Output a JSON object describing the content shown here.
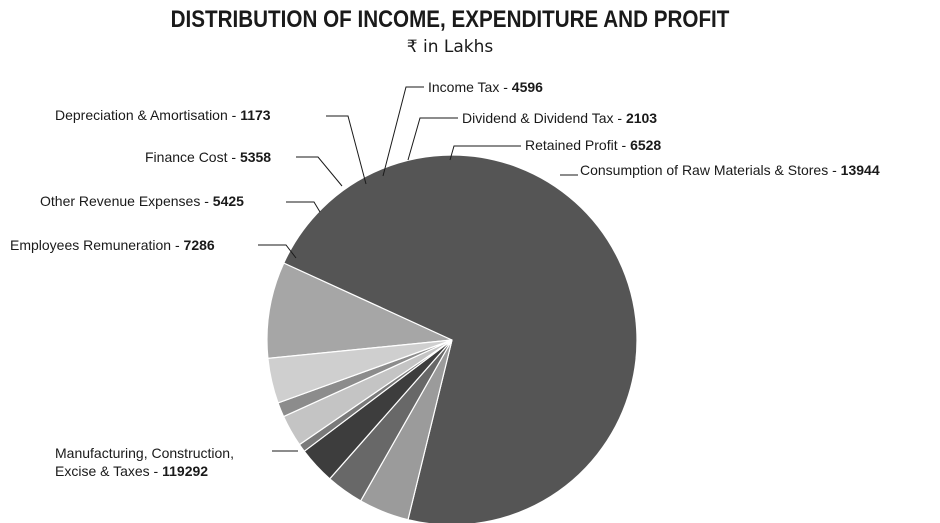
{
  "chart_data": {
    "type": "pie",
    "title": "DISTRIBUTION OF INCOME, EXPENDITURE AND PROFIT",
    "subtitle": "₹ in Lakhs",
    "slices": [
      {
        "label": "Consumption of Raw Materials & Stores",
        "value": 13944,
        "display": "13944",
        "color": "#a6a6a6"
      },
      {
        "label": "Manufacturing, Construction, Excise & Taxes",
        "value": 119292,
        "display": "119292",
        "color": "#555555",
        "lines": [
          "Manufacturing, Construction,",
          "Excise & Taxes"
        ]
      },
      {
        "label": "Employees Remuneration",
        "value": 7286,
        "display": "7286",
        "color": "#9b9b9b"
      },
      {
        "label": "Other Revenue Expenses",
        "value": 5425,
        "display": "5425",
        "color": "#686868"
      },
      {
        "label": "Finance Cost",
        "value": 5358,
        "display": "5358",
        "color": "#3d3d3d"
      },
      {
        "label": "Depreciation & Amortisation",
        "value": 1173,
        "display": "1173",
        "color": "#7a7a7a"
      },
      {
        "label": "Income Tax",
        "value": 4596,
        "display": "4596",
        "color": "#c4c4c4"
      },
      {
        "label": "Dividend & Dividend Tax",
        "value": 2103,
        "display": "2103",
        "color": "#8c8c8c"
      },
      {
        "label": "Retained Profit",
        "value": 6528,
        "display": "6528",
        "color": "#cfcfcf"
      }
    ]
  }
}
